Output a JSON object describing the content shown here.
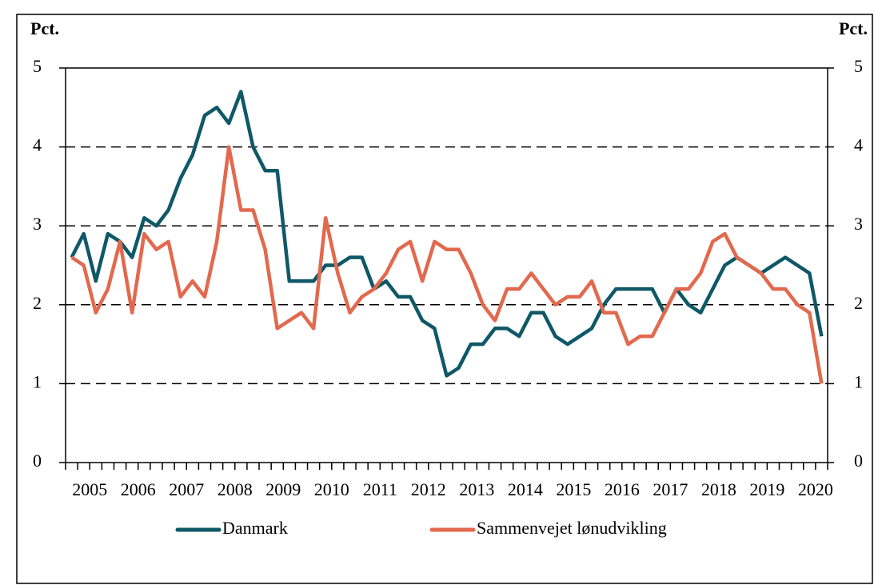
{
  "chart_data": {
    "type": "line",
    "ylabel": "Pct.",
    "y2label": "Pct.",
    "categories": [
      "2005",
      null,
      null,
      null,
      "2006",
      null,
      null,
      null,
      "2007",
      null,
      null,
      null,
      "2008",
      null,
      null,
      null,
      "2009",
      null,
      null,
      null,
      "2010",
      null,
      null,
      null,
      "2011",
      null,
      null,
      null,
      "2012",
      null,
      null,
      null,
      "2013",
      null,
      null,
      null,
      "2014",
      null,
      null,
      null,
      "2015",
      null,
      null,
      null,
      "2016",
      null,
      null,
      null,
      "2017",
      null,
      null,
      null,
      "2018",
      null,
      null,
      null,
      "2019",
      null,
      null,
      null,
      "2020",
      null,
      null
    ],
    "series": [
      {
        "name": "Danmark",
        "color": "#0f5867",
        "values": [
          2.6,
          2.9,
          2.3,
          2.9,
          2.8,
          2.6,
          3.1,
          3.0,
          3.2,
          3.6,
          3.9,
          4.4,
          4.5,
          4.3,
          4.7,
          4.0,
          3.7,
          3.7,
          2.3,
          2.3,
          2.3,
          2.5,
          2.5,
          2.6,
          2.6,
          2.2,
          2.3,
          2.1,
          2.1,
          1.8,
          1.7,
          1.1,
          1.2,
          1.5,
          1.5,
          1.7,
          1.7,
          1.6,
          1.9,
          1.9,
          1.6,
          1.5,
          1.6,
          1.7,
          2.0,
          2.2,
          2.2,
          2.2,
          2.2,
          1.9,
          2.2,
          2.0,
          1.9,
          2.2,
          2.5,
          2.6,
          2.5,
          2.4,
          2.5,
          2.6,
          2.5,
          2.4,
          1.6
        ]
      },
      {
        "name": "Sammenvejet lønudvikling",
        "color": "#e2694e",
        "values": [
          2.6,
          2.5,
          1.9,
          2.2,
          2.8,
          1.9,
          2.9,
          2.7,
          2.8,
          2.1,
          2.3,
          2.1,
          2.8,
          4.0,
          3.2,
          3.2,
          2.7,
          1.7,
          1.8,
          1.9,
          1.7,
          3.1,
          2.4,
          1.9,
          2.1,
          2.2,
          2.4,
          2.7,
          2.8,
          2.3,
          2.8,
          2.7,
          2.7,
          2.4,
          2.0,
          1.8,
          2.2,
          2.2,
          2.4,
          2.2,
          2.0,
          2.1,
          2.1,
          2.3,
          1.9,
          1.9,
          1.5,
          1.6,
          1.6,
          1.9,
          2.2,
          2.2,
          2.4,
          2.8,
          2.9,
          2.6,
          2.5,
          2.4,
          2.2,
          2.2,
          2.0,
          1.9,
          1.0
        ]
      }
    ],
    "ylim": [
      0,
      5
    ],
    "yticks": [
      0,
      1,
      2,
      3,
      4,
      5
    ],
    "y2lim": [
      0,
      5
    ],
    "y2ticks": [
      0,
      1,
      2,
      3,
      4,
      5
    ],
    "grid": true,
    "legend": "bottom"
  }
}
